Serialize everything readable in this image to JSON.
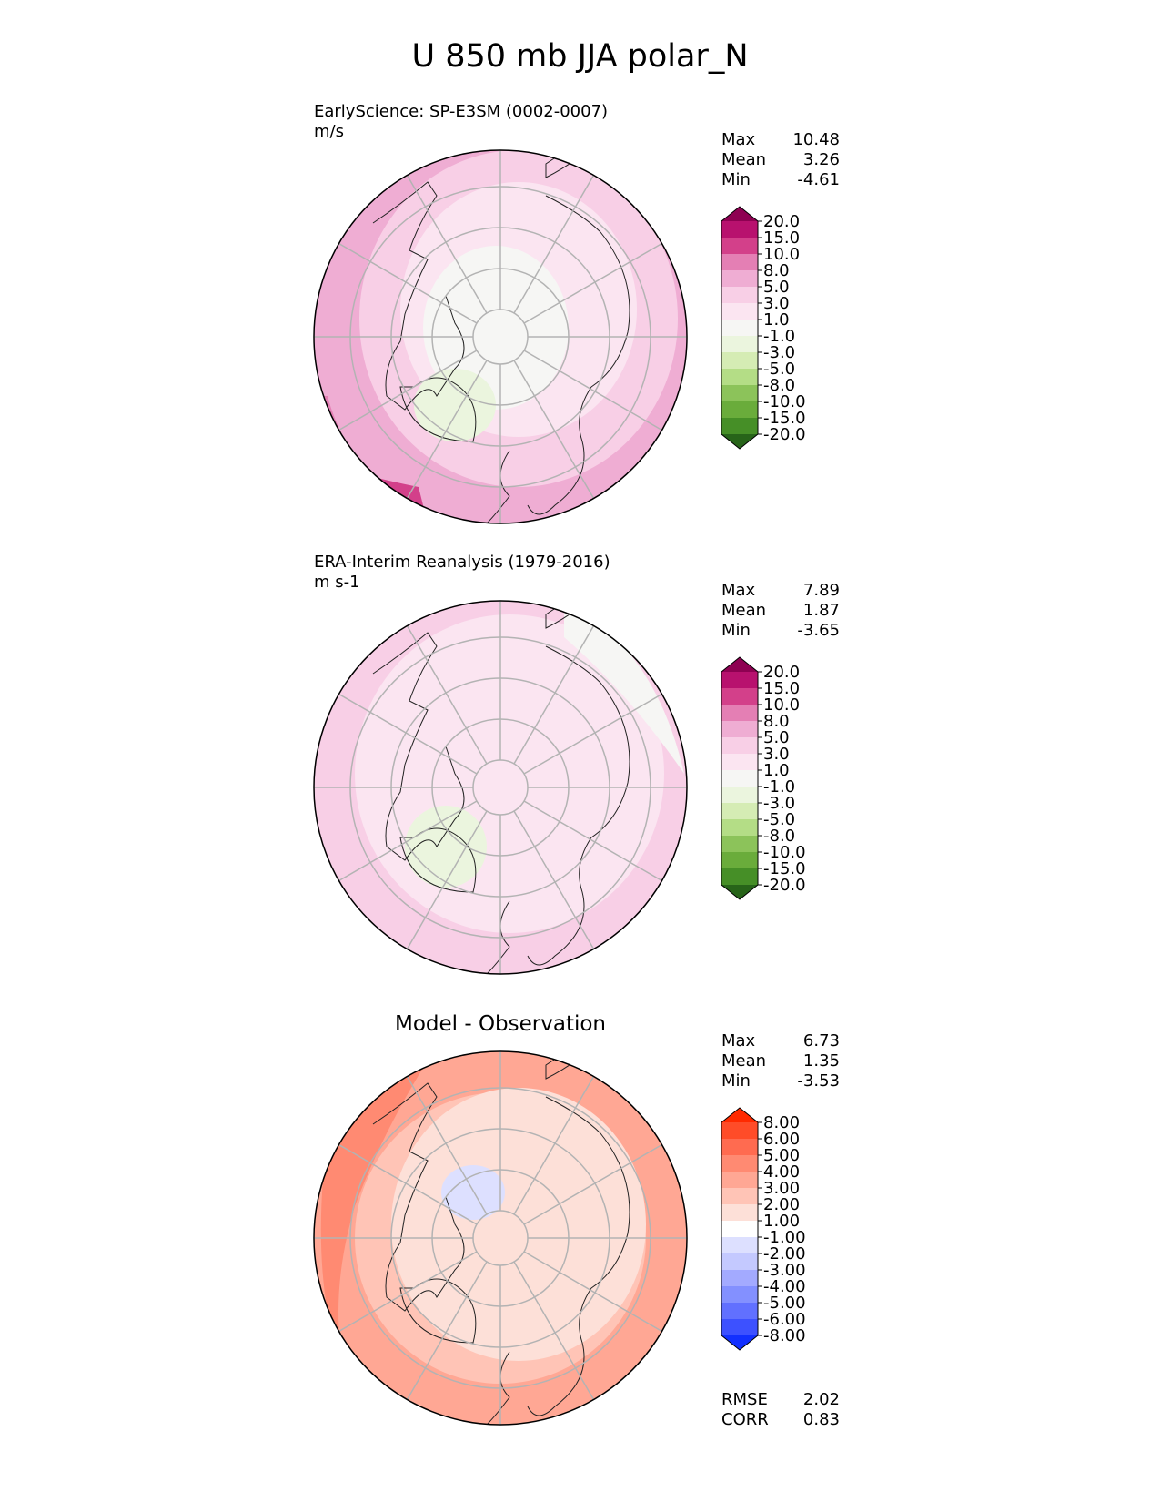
{
  "figure_title": "U 850 mb JJA polar_N",
  "chart_data": [
    {
      "type": "polar_contour_map",
      "projection": "north polar stereographic",
      "label_line1": "EarlyScience: SP-E3SM (0002-0007)",
      "label_line2": "m/s",
      "stats": [
        {
          "name": "Max",
          "value": "10.48"
        },
        {
          "name": "Mean",
          "value": "3.26"
        },
        {
          "name": "Min",
          "value": "-4.61"
        }
      ],
      "colorbar": {
        "extend": "both",
        "tick_labels": [
          "20.0",
          "15.0",
          "10.0",
          "8.0",
          "5.0",
          "3.0",
          "1.0",
          "-1.0",
          "-3.0",
          "-5.0",
          "-8.0",
          "-10.0",
          "-15.0",
          "-20.0"
        ],
        "colors": [
          "#8e0152",
          "#b8116e",
          "#d3408a",
          "#e47fb4",
          "#efadd3",
          "#f8cfe6",
          "#fbe5f1",
          "#f6f6f4",
          "#ebf5de",
          "#d5ecb4",
          "#b4dd86",
          "#8cc35a",
          "#6aac3b",
          "#468f27",
          "#276419"
        ]
      },
      "regions": [
        {
          "level": "5.0",
          "color": "#efadd3"
        },
        {
          "level": "3.0",
          "color": "#f8cfe6"
        },
        {
          "level": "8.0",
          "color": "#e47fb4"
        },
        {
          "level": "10.0",
          "color": "#d3408a"
        },
        {
          "level": "1.0",
          "color": "#fbe5f1"
        },
        {
          "level": "-1.0",
          "color": "#f6f6f4"
        },
        {
          "level": "-3.0",
          "color": "#ebf5de"
        }
      ]
    },
    {
      "type": "polar_contour_map",
      "projection": "north polar stereographic",
      "label_line1": "ERA-Interim Reanalysis (1979-2016)",
      "label_line2": "m s-1",
      "stats": [
        {
          "name": "Max",
          "value": "7.89"
        },
        {
          "name": "Mean",
          "value": "1.87"
        },
        {
          "name": "Min",
          "value": "-3.65"
        }
      ],
      "colorbar": {
        "extend": "both",
        "tick_labels": [
          "20.0",
          "15.0",
          "10.0",
          "8.0",
          "5.0",
          "3.0",
          "1.0",
          "-1.0",
          "-3.0",
          "-5.0",
          "-8.0",
          "-10.0",
          "-15.0",
          "-20.0"
        ],
        "colors": [
          "#8e0152",
          "#b8116e",
          "#d3408a",
          "#e47fb4",
          "#efadd3",
          "#f8cfe6",
          "#fbe5f1",
          "#f6f6f4",
          "#ebf5de",
          "#d5ecb4",
          "#b4dd86",
          "#8cc35a",
          "#6aac3b",
          "#468f27",
          "#276419"
        ]
      },
      "regions": [
        {
          "level": "3.0",
          "color": "#f8cfe6"
        },
        {
          "level": "5.0",
          "color": "#efadd3"
        },
        {
          "level": "1.0",
          "color": "#fbe5f1"
        },
        {
          "level": "-1.0",
          "color": "#f6f6f4"
        },
        {
          "level": "-3.0",
          "color": "#ebf5de"
        }
      ]
    },
    {
      "type": "polar_contour_map",
      "projection": "north polar stereographic",
      "title": "Model - Observation",
      "stats": [
        {
          "name": "Max",
          "value": "6.73"
        },
        {
          "name": "Mean",
          "value": "1.35"
        },
        {
          "name": "Min",
          "value": "-3.53"
        }
      ],
      "metrics": [
        {
          "name": "RMSE",
          "value": "2.02"
        },
        {
          "name": "CORR",
          "value": "0.83"
        }
      ],
      "colorbar": {
        "extend": "both",
        "tick_labels": [
          "8.00",
          "6.00",
          "5.00",
          "4.00",
          "3.00",
          "2.00",
          "1.00",
          "-1.00",
          "-2.00",
          "-3.00",
          "-4.00",
          "-5.00",
          "-6.00",
          "-8.00"
        ],
        "colors": [
          "#ff2a00",
          "#ff4c28",
          "#ff6b50",
          "#ff8a72",
          "#ffa794",
          "#ffc4b6",
          "#fde0d8",
          "#ffffff",
          "#dde0ff",
          "#c4c9ff",
          "#a3aaff",
          "#8390ff",
          "#6170ff",
          "#3d51ff",
          "#1230ff"
        ]
      },
      "regions": [
        {
          "level": "3.00",
          "color": "#ffa794"
        },
        {
          "level": "2.00",
          "color": "#ffc4b6"
        },
        {
          "level": "1.00",
          "color": "#fde0d8"
        },
        {
          "level": "4.00",
          "color": "#ff8a72"
        },
        {
          "level": "-1.00",
          "color": "#dde0ff"
        }
      ]
    }
  ]
}
